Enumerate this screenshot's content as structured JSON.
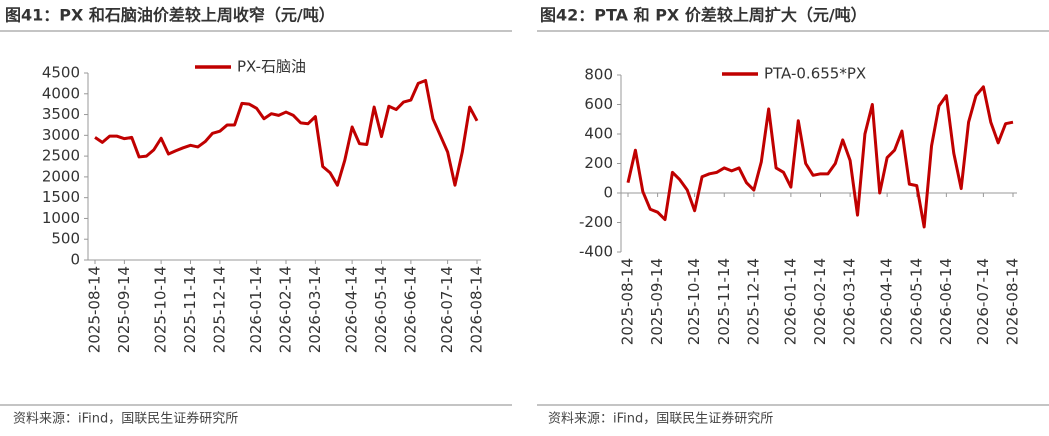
{
  "chart_data": [
    {
      "type": "line",
      "title": "图41：PX 和石脑油价差较上周收窄（元/吨）",
      "source": "资料来源：iFind，国联民生证券研究所",
      "categories": [
        "2025-08-14",
        null,
        null,
        null,
        "2025-09-14",
        null,
        null,
        null,
        null,
        "2025-10-14",
        null,
        null,
        null,
        "2025-11-14",
        null,
        null,
        null,
        "2025-12-14",
        null,
        null,
        null,
        null,
        "2026-01-14",
        null,
        null,
        null,
        "2026-02-14",
        null,
        null,
        null,
        "2026-03-14",
        null,
        null,
        null,
        null,
        "2026-04-14",
        null,
        null,
        null,
        "2026-05-14",
        null,
        null,
        null,
        "2026-06-14",
        null,
        null,
        null,
        null,
        "2026-07-14",
        null,
        null,
        null,
        "2026-08-14"
      ],
      "series": [
        {
          "name": "PX-石脑油",
          "color": "#c00000",
          "values": [
            2950,
            2830,
            2980,
            2980,
            2920,
            2950,
            2480,
            2500,
            2650,
            2930,
            2550,
            2630,
            2700,
            2760,
            2720,
            2850,
            3050,
            3100,
            3250,
            3250,
            3770,
            3750,
            3650,
            3400,
            3520,
            3480,
            3560,
            3480,
            3300,
            3280,
            3450,
            2250,
            2100,
            1800,
            2400,
            3200,
            2800,
            2780,
            3680,
            2970,
            3700,
            3620,
            3800,
            3850,
            4250,
            4320,
            3400,
            3000,
            2600,
            1800,
            2600,
            3680,
            3350
          ]
        }
      ],
      "ylim": [
        0,
        4500
      ],
      "yticks": [
        0,
        500,
        1000,
        1500,
        2000,
        2500,
        3000,
        3500,
        4000,
        4500
      ]
    },
    {
      "type": "line",
      "title": "图42：PTA 和 PX 价差较上周扩大（元/吨）",
      "source": "资料来源：iFind，国联民生证券研究所",
      "categories": [
        "2025-08-14",
        null,
        null,
        null,
        "2025-09-14",
        null,
        null,
        null,
        null,
        "2025-10-14",
        null,
        null,
        null,
        "2025-11-14",
        null,
        null,
        null,
        "2025-12-14",
        null,
        null,
        null,
        null,
        "2026-01-14",
        null,
        null,
        null,
        "2026-02-14",
        null,
        null,
        null,
        "2026-03-14",
        null,
        null,
        null,
        null,
        "2026-04-14",
        null,
        null,
        null,
        "2026-05-14",
        null,
        null,
        null,
        "2026-06-14",
        null,
        null,
        null,
        null,
        "2026-07-14",
        null,
        null,
        null,
        "2026-08-14"
      ],
      "series": [
        {
          "name": "PTA-0.655*PX",
          "color": "#c00000",
          "values": [
            70,
            290,
            10,
            -110,
            -130,
            -180,
            140,
            90,
            20,
            -120,
            110,
            130,
            140,
            170,
            150,
            170,
            70,
            20,
            210,
            570,
            170,
            140,
            40,
            490,
            200,
            120,
            130,
            130,
            200,
            360,
            220,
            -150,
            400,
            600,
            0,
            240,
            290,
            420,
            60,
            50,
            -230,
            320,
            590,
            660,
            270,
            30,
            480,
            660,
            720,
            480,
            340,
            470,
            480
          ]
        }
      ],
      "ylim": [
        -400,
        800
      ],
      "yticks": [
        -400,
        -200,
        0,
        200,
        400,
        600,
        800
      ]
    }
  ]
}
